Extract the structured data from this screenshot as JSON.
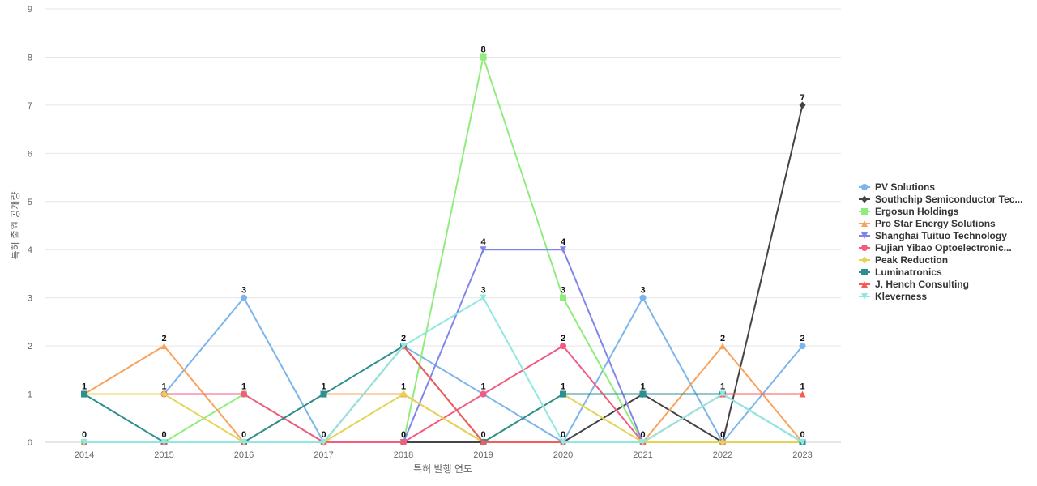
{
  "chart_data": {
    "type": "line",
    "xlabel": "특허 발행 연도",
    "ylabel": "특허 출원 공개량",
    "ylim": [
      0,
      9
    ],
    "yticks": [
      0,
      1,
      2,
      3,
      4,
      5,
      6,
      7,
      8,
      9
    ],
    "grid": true,
    "legend_position": "right",
    "x": [
      "2014",
      "2015",
      "2016",
      "2017",
      "2018",
      "2019",
      "2020",
      "2021",
      "2022",
      "2023"
    ],
    "series": [
      {
        "name": "PV Solutions",
        "color": "#7cb5ec",
        "marker": "circle",
        "values": [
          1,
          1,
          3,
          0,
          2,
          1,
          0,
          3,
          0,
          2
        ]
      },
      {
        "name": "Southchip Semiconductor Tec...",
        "color": "#434348",
        "marker": "diamond",
        "values": [
          0,
          0,
          0,
          0,
          0,
          0,
          0,
          1,
          0,
          7
        ]
      },
      {
        "name": "Ergosun Holdings",
        "color": "#90ed7d",
        "marker": "square",
        "values": [
          0,
          0,
          1,
          0,
          0,
          8,
          3,
          0,
          0,
          0
        ]
      },
      {
        "name": "Pro Star Energy Solutions",
        "color": "#f7a35c",
        "marker": "triangle",
        "values": [
          1,
          2,
          0,
          1,
          1,
          0,
          0,
          0,
          2,
          0
        ]
      },
      {
        "name": "Shanghai Tuituo Technology",
        "color": "#8085e9",
        "marker": "triangle-down",
        "values": [
          0,
          0,
          0,
          0,
          0,
          4,
          4,
          0,
          0,
          0
        ]
      },
      {
        "name": "Fujian Yibao Optoelectronic...",
        "color": "#f15c80",
        "marker": "circle",
        "values": [
          1,
          1,
          1,
          0,
          0,
          1,
          2,
          0,
          0,
          0
        ]
      },
      {
        "name": "Peak Reduction",
        "color": "#e4d354",
        "marker": "diamond",
        "values": [
          1,
          1,
          0,
          0,
          1,
          0,
          1,
          0,
          0,
          0
        ]
      },
      {
        "name": "Luminatronics",
        "color": "#2b908f",
        "marker": "square",
        "values": [
          1,
          0,
          0,
          1,
          2,
          0,
          1,
          1,
          1,
          0
        ]
      },
      {
        "name": "J. Hench Consulting",
        "color": "#f45b5b",
        "marker": "triangle",
        "values": [
          0,
          0,
          0,
          0,
          2,
          0,
          0,
          0,
          1,
          1
        ]
      },
      {
        "name": "Kleverness",
        "color": "#91e8e1",
        "marker": "triangle-down",
        "values": [
          0,
          0,
          0,
          0,
          2,
          3,
          0,
          0,
          1,
          0
        ]
      }
    ],
    "data_labels": [
      {
        "x": "2014",
        "series": "PV Solutions",
        "text": "1"
      },
      {
        "x": "2014",
        "series": "Southchip Semiconductor Tec...",
        "text": "0"
      },
      {
        "x": "2015",
        "series": "Pro Star Energy Solutions",
        "text": "2"
      },
      {
        "x": "2015",
        "series": "PV Solutions",
        "text": "1"
      },
      {
        "x": "2015",
        "series": "Luminatronics",
        "text": "0"
      },
      {
        "x": "2016",
        "series": "PV Solutions",
        "text": "3"
      },
      {
        "x": "2016",
        "series": "Ergosun Holdings",
        "text": "1"
      },
      {
        "x": "2016",
        "series": "Pro Star Energy Solutions",
        "text": "0"
      },
      {
        "x": "2017",
        "series": "Luminatronics",
        "text": "1"
      },
      {
        "x": "2017",
        "series": "PV Solutions",
        "text": "0"
      },
      {
        "x": "2018",
        "series": "PV Solutions",
        "text": "2"
      },
      {
        "x": "2018",
        "series": "Pro Star Energy Solutions",
        "text": "1"
      },
      {
        "x": "2018",
        "series": "Southchip Semiconductor Tec...",
        "text": "0"
      },
      {
        "x": "2019",
        "series": "Ergosun Holdings",
        "text": "8"
      },
      {
        "x": "2019",
        "series": "Shanghai Tuituo Technology",
        "text": "4"
      },
      {
        "x": "2019",
        "series": "Kleverness",
        "text": "3"
      },
      {
        "x": "2019",
        "series": "PV Solutions",
        "text": "1"
      },
      {
        "x": "2019",
        "series": "Southchip Semiconductor Tec...",
        "text": "0"
      },
      {
        "x": "2020",
        "series": "Shanghai Tuituo Technology",
        "text": "4"
      },
      {
        "x": "2020",
        "series": "Ergosun Holdings",
        "text": "3"
      },
      {
        "x": "2020",
        "series": "Fujian Yibao Optoelectronic...",
        "text": "2"
      },
      {
        "x": "2020",
        "series": "Luminatronics",
        "text": "1"
      },
      {
        "x": "2020",
        "series": "PV Solutions",
        "text": "0"
      },
      {
        "x": "2021",
        "series": "PV Solutions",
        "text": "3"
      },
      {
        "x": "2021",
        "series": "Southchip Semiconductor Tec...",
        "text": "1"
      },
      {
        "x": "2021",
        "series": "Ergosun Holdings",
        "text": "0"
      },
      {
        "x": "2022",
        "series": "Pro Star Energy Solutions",
        "text": "2"
      },
      {
        "x": "2022",
        "series": "Luminatronics",
        "text": "1"
      },
      {
        "x": "2022",
        "series": "PV Solutions",
        "text": "0"
      },
      {
        "x": "2023",
        "series": "Southchip Semiconductor Tec...",
        "text": "7"
      },
      {
        "x": "2023",
        "series": "PV Solutions",
        "text": "2"
      },
      {
        "x": "2023",
        "series": "J. Hench Consulting",
        "text": "1"
      },
      {
        "x": "2023",
        "series": "Ergosun Holdings",
        "text": "0"
      }
    ]
  }
}
